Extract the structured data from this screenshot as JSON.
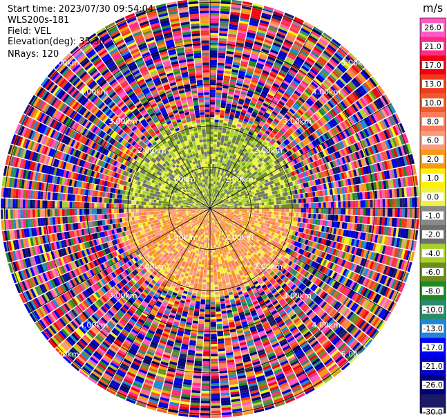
{
  "header": {
    "start_time": "Start time: 2023/07/30 09:54:04",
    "device": "WLS200s-181",
    "field": "Field: VEL",
    "elevation": "Elevation(deg): 35.30",
    "nrays": "NRays: 120"
  },
  "chart_data": {
    "type": "heatmap",
    "projection": "polar-ppi",
    "n_rays": 120,
    "range_rings_km": [
      1.0,
      2.0,
      3.0,
      4.0,
      5.0
    ],
    "ring_labels": [
      "1.00km",
      "2.00km",
      "3.00km",
      "4.00km",
      "5.00km"
    ],
    "radial_lines_every_deg": 30,
    "grid": true,
    "near_field_pattern": {
      "north_half_inner_km": 2.0,
      "north_half_values": [
        -4.0,
        -6.0,
        -2.0,
        0.0
      ],
      "south_half_inner_km": 2.0,
      "south_half_values": [
        6.0,
        8.0,
        2.0,
        0.0
      ],
      "outer_values": "mixed noise across full scale"
    },
    "colorbar": {
      "unit": "m/s",
      "range": [
        -30.0,
        30.0
      ],
      "tick_labels": [
        "26.0",
        "21.0",
        "17.0",
        "13.0",
        "10.0",
        "8.0",
        "6.0",
        "2.0",
        "1.0",
        "0.0",
        "-1.0",
        "-2.0",
        "-4.0",
        "-6.0",
        "-8.0",
        "-10.0",
        "-13.0",
        "-17.0",
        "-21.0",
        "-26.0",
        "-30.0"
      ],
      "bins": [
        {
          "from": 26,
          "to": 30,
          "color": "#ff59c6"
        },
        {
          "from": 21,
          "to": 26,
          "color": "#ff2a86"
        },
        {
          "from": 17,
          "to": 21,
          "color": "#f20012"
        },
        {
          "from": 13,
          "to": 17,
          "color": "#ef3a1c"
        },
        {
          "from": 10,
          "to": 13,
          "color": "#f25a2b"
        },
        {
          "from": 8,
          "to": 10,
          "color": "#f97c5c"
        },
        {
          "from": 6,
          "to": 8,
          "color": "#fb9a7d"
        },
        {
          "from": 2,
          "to": 6,
          "color": "#f99a14"
        },
        {
          "from": 1,
          "to": 2,
          "color": "#fff200"
        },
        {
          "from": 0,
          "to": 1,
          "color": "#f0f041"
        },
        {
          "from": -1,
          "to": 0,
          "color": "#8a8a8a"
        },
        {
          "from": -2,
          "to": -1,
          "color": "#6f6f6f"
        },
        {
          "from": -4,
          "to": -2,
          "color": "#a8d22a"
        },
        {
          "from": -6,
          "to": -4,
          "color": "#6d8e1f"
        },
        {
          "from": -8,
          "to": -6,
          "color": "#1f8a22"
        },
        {
          "from": -10,
          "to": -8,
          "color": "#2a8a6e"
        },
        {
          "from": -13,
          "to": -10,
          "color": "#1e88d6"
        },
        {
          "from": -17,
          "to": -13,
          "color": "#0000ff"
        },
        {
          "from": -21,
          "to": -17,
          "color": "#0000c8"
        },
        {
          "from": -26,
          "to": -21,
          "color": "#00007a"
        },
        {
          "from": -30,
          "to": -26,
          "color": "#1a1a66"
        }
      ]
    }
  }
}
